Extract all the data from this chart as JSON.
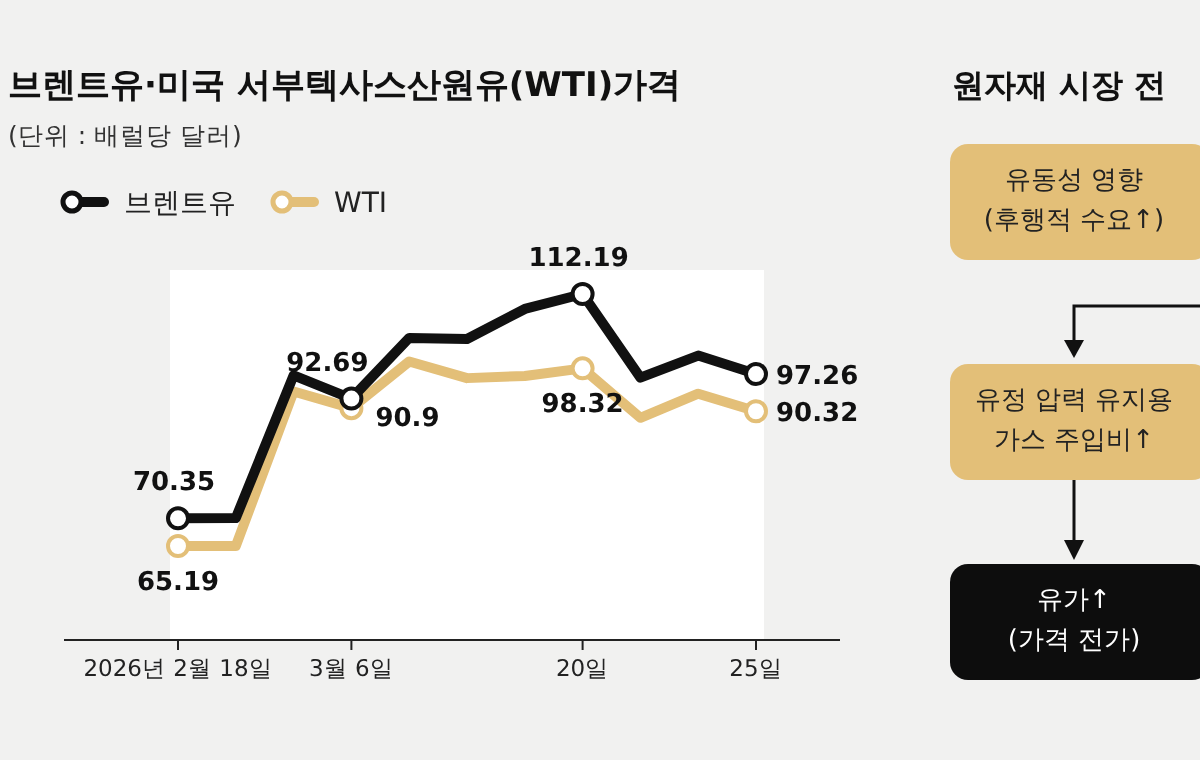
{
  "chart_data": [
    {
      "type": "line",
      "title": "브렌트유·미국 서부텍사스산원유(WTI)가격",
      "subtitle": "(단위 : 배럴당 달러)",
      "categories": [
        "2026년 2월 18일",
        null,
        null,
        "3월 6일",
        null,
        null,
        null,
        "20일",
        null,
        null,
        "25일"
      ],
      "series": [
        {
          "name": "브렌트유",
          "color": "#111111",
          "values": [
            70.35,
            70.4,
            97,
            92.69,
            104,
            103.8,
            109.4,
            112.19,
            96.6,
            100.7,
            97.26
          ],
          "value_labels": [
            "70.35",
            null,
            null,
            "92.69",
            null,
            null,
            null,
            "112.19",
            null,
            null,
            "97.26"
          ]
        },
        {
          "name": "WTI",
          "color": "#e3bf78",
          "values": [
            65.19,
            65.2,
            94,
            90.9,
            99.6,
            96.5,
            96.9,
            98.32,
            89.1,
            93.6,
            90.32
          ],
          "value_labels": [
            "65.19",
            null,
            null,
            "90.9",
            null,
            null,
            null,
            "98.32",
            null,
            null,
            "90.32"
          ]
        }
      ],
      "legend": "top left"
    },
    {
      "type": "other",
      "title": "원자재 시장 전",
      "annotations": [
        "유동성 영향\n(후행적 수요↑)",
        "유정 압력 유지용\n가스 주입비↑",
        "유가↑\n(가격 전가)"
      ]
    }
  ]
}
